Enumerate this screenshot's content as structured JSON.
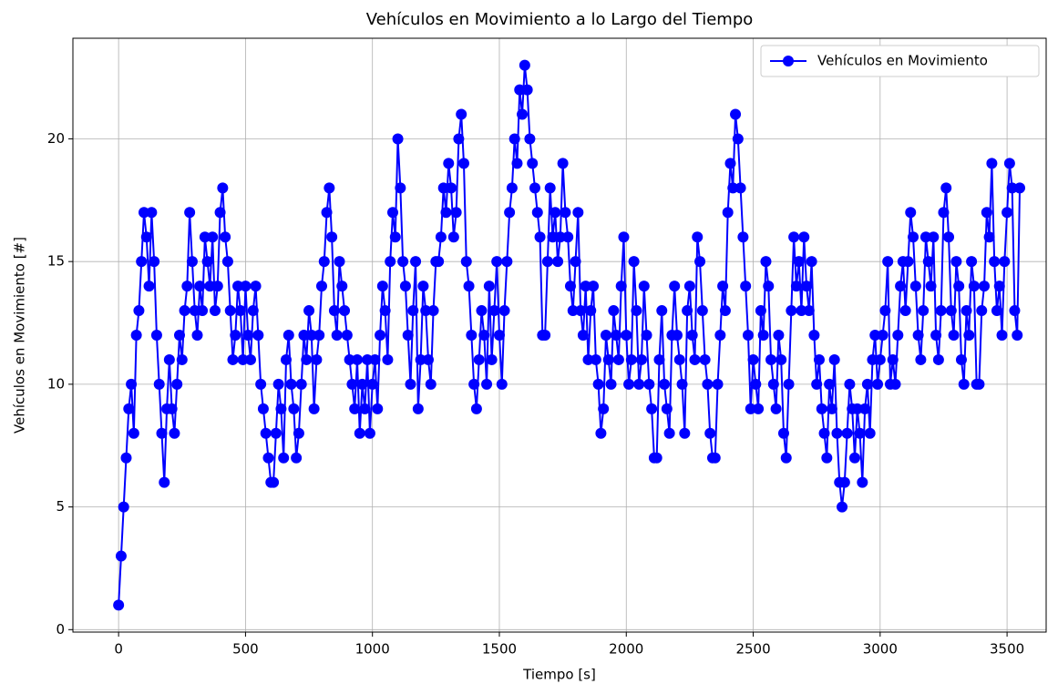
{
  "chart_data": {
    "type": "line",
    "title": "Vehículos en Movimiento a lo Largo del Tiempo",
    "x_label": "Tiempo [s]",
    "y_label": "Vehículos en Movimiento [#]",
    "x": [
      0,
      10,
      20,
      30,
      40,
      50,
      60,
      70,
      80,
      90,
      100,
      110,
      120,
      130,
      140,
      150,
      160,
      170,
      180,
      190,
      200,
      210,
      220,
      230,
      240,
      250,
      260,
      270,
      280,
      290,
      300,
      310,
      320,
      330,
      340,
      350,
      360,
      370,
      380,
      390,
      400,
      410,
      420,
      430,
      440,
      450,
      460,
      470,
      480,
      490,
      500,
      510,
      520,
      530,
      540,
      550,
      560,
      570,
      580,
      590,
      600,
      610,
      620,
      630,
      640,
      650,
      660,
      670,
      680,
      690,
      700,
      710,
      720,
      730,
      740,
      750,
      760,
      770,
      780,
      790,
      800,
      810,
      820,
      830,
      840,
      850,
      860,
      870,
      880,
      890,
      900,
      910,
      920,
      930,
      940,
      950,
      960,
      970,
      980,
      990,
      1000,
      1010,
      1020,
      1030,
      1040,
      1050,
      1060,
      1070,
      1080,
      1090,
      1100,
      1110,
      1120,
      1130,
      1140,
      1150,
      1160,
      1170,
      1180,
      1190,
      1200,
      1210,
      1220,
      1230,
      1240,
      1250,
      1260,
      1270,
      1280,
      1290,
      1300,
      1310,
      1320,
      1330,
      1340,
      1350,
      1360,
      1370,
      1380,
      1390,
      1400,
      1410,
      1420,
      1430,
      1440,
      1450,
      1460,
      1470,
      1480,
      1490,
      1500,
      1510,
      1520,
      1530,
      1540,
      1550,
      1560,
      1570,
      1580,
      1590,
      1600,
      1610,
      1620,
      1630,
      1640,
      1650,
      1660,
      1670,
      1680,
      1690,
      1700,
      1710,
      1720,
      1730,
      1740,
      1750,
      1760,
      1770,
      1780,
      1790,
      1800,
      1810,
      1820,
      1830,
      1840,
      1850,
      1860,
      1870,
      1880,
      1890,
      1900,
      1910,
      1920,
      1930,
      1940,
      1950,
      1960,
      1970,
      1980,
      1990,
      2000,
      2010,
      2020,
      2030,
      2040,
      2050,
      2060,
      2070,
      2080,
      2090,
      2100,
      2110,
      2120,
      2130,
      2140,
      2150,
      2160,
      2170,
      2180,
      2190,
      2200,
      2210,
      2220,
      2230,
      2240,
      2250,
      2260,
      2270,
      2280,
      2290,
      2300,
      2310,
      2320,
      2330,
      2340,
      2350,
      2360,
      2370,
      2380,
      2390,
      2400,
      2410,
      2420,
      2430,
      2440,
      2450,
      2460,
      2470,
      2480,
      2490,
      2500,
      2510,
      2520,
      2530,
      2540,
      2550,
      2560,
      2570,
      2580,
      2590,
      2600,
      2610,
      2620,
      2630,
      2640,
      2650,
      2660,
      2670,
      2680,
      2690,
      2700,
      2710,
      2720,
      2730,
      2740,
      2750,
      2760,
      2770,
      2780,
      2790,
      2800,
      2810,
      2820,
      2830,
      2840,
      2850,
      2860,
      2870,
      2880,
      2890,
      2900,
      2910,
      2920,
      2930,
      2940,
      2950,
      2960,
      2970,
      2980,
      2990,
      3000,
      3010,
      3020,
      3030,
      3040,
      3050,
      3060,
      3070,
      3080,
      3090,
      3100,
      3110,
      3120,
      3130,
      3140,
      3150,
      3160,
      3170,
      3180,
      3190,
      3200,
      3210,
      3220,
      3230,
      3240,
      3250,
      3260,
      3270,
      3280,
      3290,
      3300,
      3310,
      3320,
      3330,
      3340,
      3350,
      3360,
      3370,
      3380,
      3390,
      3400,
      3410,
      3420,
      3430,
      3440,
      3450,
      3460,
      3470,
      3480,
      3490,
      3500,
      3510,
      3520,
      3530,
      3540,
      3550
    ],
    "series": [
      {
        "name": "Vehículos en Movimiento",
        "color": "#0000ff",
        "values": [
          1,
          3,
          5,
          7,
          9,
          10,
          8,
          12,
          13,
          15,
          17,
          16,
          14,
          17,
          15,
          12,
          10,
          8,
          6,
          9,
          11,
          9,
          8,
          10,
          12,
          11,
          13,
          14,
          17,
          15,
          13,
          12,
          14,
          13,
          16,
          15,
          14,
          16,
          13,
          14,
          17,
          18,
          16,
          15,
          13,
          11,
          12,
          14,
          13,
          11,
          14,
          12,
          11,
          13,
          14,
          12,
          10,
          9,
          8,
          7,
          6,
          6,
          8,
          10,
          9,
          7,
          11,
          12,
          10,
          9,
          7,
          8,
          10,
          12,
          11,
          13,
          12,
          9,
          11,
          12,
          14,
          15,
          17,
          18,
          16,
          13,
          12,
          15,
          14,
          13,
          12,
          11,
          10,
          9,
          11,
          8,
          10,
          9,
          11,
          8,
          10,
          11,
          9,
          12,
          14,
          13,
          11,
          15,
          17,
          16,
          20,
          18,
          15,
          14,
          12,
          10,
          13,
          15,
          9,
          11,
          14,
          13,
          11,
          10,
          13,
          15,
          15,
          16,
          18,
          17,
          19,
          18,
          16,
          17,
          20,
          21,
          19,
          15,
          14,
          12,
          10,
          9,
          11,
          13,
          12,
          10,
          14,
          11,
          13,
          15,
          12,
          10,
          13,
          15,
          17,
          18,
          20,
          19,
          22,
          21,
          23,
          22,
          20,
          19,
          18,
          17,
          16,
          12,
          12,
          15,
          18,
          16,
          17,
          15,
          16,
          19,
          17,
          16,
          14,
          13,
          15,
          17,
          13,
          12,
          14,
          11,
          13,
          14,
          11,
          10,
          8,
          9,
          12,
          11,
          10,
          13,
          12,
          11,
          14,
          16,
          12,
          10,
          11,
          15,
          13,
          10,
          11,
          14,
          12,
          10,
          9,
          7,
          7,
          11,
          13,
          10,
          9,
          8,
          12,
          14,
          12,
          11,
          10,
          8,
          13,
          14,
          12,
          11,
          16,
          15,
          13,
          11,
          10,
          8,
          7,
          7,
          10,
          12,
          14,
          13,
          17,
          19,
          18,
          21,
          20,
          18,
          16,
          14,
          12,
          9,
          11,
          10,
          9,
          13,
          12,
          15,
          14,
          11,
          10,
          9,
          12,
          11,
          8,
          7,
          10,
          13,
          16,
          14,
          15,
          13,
          16,
          14,
          13,
          15,
          12,
          10,
          11,
          9,
          8,
          7,
          10,
          9,
          11,
          8,
          6,
          5,
          6,
          8,
          10,
          9,
          7,
          9,
          8,
          6,
          9,
          10,
          8,
          11,
          12,
          10,
          11,
          12,
          13,
          15,
          10,
          11,
          10,
          12,
          14,
          15,
          13,
          15,
          17,
          16,
          14,
          12,
          11,
          13,
          16,
          15,
          14,
          16,
          12,
          11,
          13,
          17,
          18,
          16,
          13,
          12,
          15,
          14,
          11,
          10,
          13,
          12,
          15,
          14,
          10,
          10,
          13,
          14,
          17,
          16,
          19,
          15,
          13,
          14,
          12,
          15,
          17,
          19,
          18,
          13,
          12,
          18
        ]
      }
    ],
    "xlim": [
      -180,
      3654
    ],
    "ylim": [
      -0.1,
      24.1
    ],
    "xticks": [
      0,
      500,
      1000,
      1500,
      2000,
      2500,
      3000,
      3500
    ],
    "yticks": [
      0,
      5,
      10,
      15,
      20
    ],
    "grid": true,
    "legend": "upper right"
  }
}
